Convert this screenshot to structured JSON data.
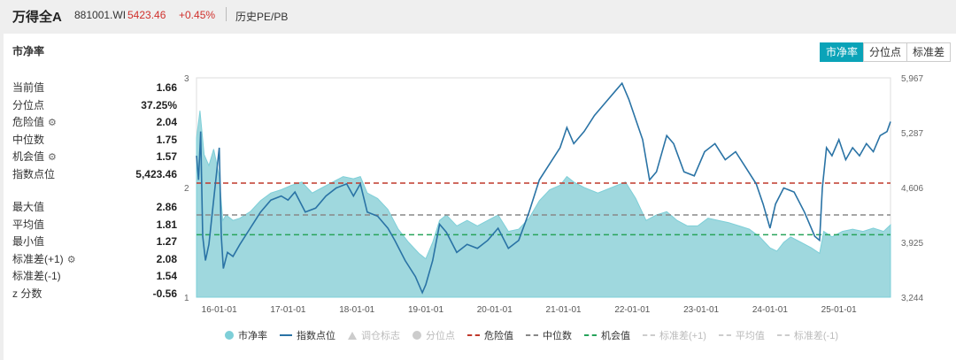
{
  "header": {
    "name": "万得全A",
    "code": "881001.WI",
    "price": "5423.46",
    "change": "+0.45%",
    "history": "历史PE/PB"
  },
  "panel": {
    "title": "市净率",
    "tabs": [
      {
        "label": "市净率",
        "active": true
      },
      {
        "label": "分位点",
        "active": false
      },
      {
        "label": "标准差",
        "active": false
      }
    ]
  },
  "stats": {
    "top": [
      {
        "label": "当前值",
        "value": "1.66",
        "gear": false
      },
      {
        "label": "分位点",
        "value": "37.25%",
        "gear": false
      },
      {
        "label": "危险值",
        "value": "2.04",
        "gear": true
      },
      {
        "label": "中位数",
        "value": "1.75",
        "gear": false
      },
      {
        "label": "机会值",
        "value": "1.57",
        "gear": true
      },
      {
        "label": "指数点位",
        "value": "5,423.46",
        "gear": false
      }
    ],
    "bottom": [
      {
        "label": "最大值",
        "value": "2.86",
        "gear": false
      },
      {
        "label": "平均值",
        "value": "1.81",
        "gear": false
      },
      {
        "label": "最小值",
        "value": "1.27",
        "gear": false
      },
      {
        "label": "标准差(+1)",
        "value": "2.08",
        "gear": true
      },
      {
        "label": "标准差(-1)",
        "value": "1.54",
        "gear": false
      },
      {
        "label": "z 分数",
        "value": "-0.56",
        "gear": false
      }
    ]
  },
  "legend": [
    {
      "label": "市净率",
      "marker": "circle",
      "color": "#7ecfd8",
      "dim": false
    },
    {
      "label": "指数点位",
      "marker": "line",
      "color": "#2a73a5",
      "dim": false
    },
    {
      "label": "调仓标志",
      "marker": "triangle",
      "color": "#cccccc",
      "dim": true
    },
    {
      "label": "分位点",
      "marker": "circle",
      "color": "#cccccc",
      "dim": true
    },
    {
      "label": "危险值",
      "marker": "dash",
      "color": "#c0392b",
      "dim": false
    },
    {
      "label": "中位数",
      "marker": "dash",
      "color": "#888888",
      "dim": false
    },
    {
      "label": "机会值",
      "marker": "dash",
      "color": "#27a35a",
      "dim": false
    },
    {
      "label": "标准差(+1)",
      "marker": "dash",
      "color": "#cccccc",
      "dim": true
    },
    {
      "label": "平均值",
      "marker": "dash",
      "color": "#cccccc",
      "dim": true
    },
    {
      "label": "标准差(-1)",
      "marker": "dash",
      "color": "#cccccc",
      "dim": true
    }
  ],
  "chart_data": {
    "type": "area",
    "title": "",
    "x_tick_labels": [
      "16-01-01",
      "17-01-01",
      "18-01-01",
      "19-01-01",
      "20-01-01",
      "21-01-01",
      "22-01-01",
      "23-01-01",
      "24-01-01",
      "25-01-01"
    ],
    "x_range": [
      2015.67,
      2025.75
    ],
    "left_axis": {
      "ylim": [
        1,
        3
      ],
      "ticks": [
        "1",
        "2",
        "3"
      ]
    },
    "right_axis": {
      "ylim": [
        3244,
        5967
      ],
      "ticks": [
        "3,244",
        "3,925",
        "4,606",
        "5,287",
        "5,967"
      ]
    },
    "reference_lines": {
      "danger": 2.04,
      "median": 1.75,
      "opportunity": 1.57
    },
    "colors": {
      "area": "#9fd8de",
      "area_line": "#7ecfd8",
      "index": "#2a73a5",
      "danger": "#c0392b",
      "median": "#888888",
      "opportunity": "#27a35a"
    },
    "series": [
      {
        "name": "市净率",
        "axis": "left",
        "points": [
          [
            2015.67,
            2.45
          ],
          [
            2015.72,
            2.7
          ],
          [
            2015.78,
            2.3
          ],
          [
            2015.85,
            2.2
          ],
          [
            2015.92,
            2.35
          ],
          [
            2016.0,
            2.1
          ],
          [
            2016.05,
            1.7
          ],
          [
            2016.1,
            1.75
          ],
          [
            2016.2,
            1.7
          ],
          [
            2016.3,
            1.72
          ],
          [
            2016.45,
            1.78
          ],
          [
            2016.6,
            1.88
          ],
          [
            2016.75,
            1.95
          ],
          [
            2016.9,
            1.98
          ],
          [
            2017.05,
            2.02
          ],
          [
            2017.2,
            2.05
          ],
          [
            2017.35,
            1.95
          ],
          [
            2017.5,
            2.0
          ],
          [
            2017.65,
            2.05
          ],
          [
            2017.8,
            2.1
          ],
          [
            2017.95,
            2.08
          ],
          [
            2018.05,
            2.1
          ],
          [
            2018.15,
            1.95
          ],
          [
            2018.3,
            1.9
          ],
          [
            2018.45,
            1.8
          ],
          [
            2018.6,
            1.62
          ],
          [
            2018.75,
            1.5
          ],
          [
            2018.9,
            1.4
          ],
          [
            2019.0,
            1.35
          ],
          [
            2019.1,
            1.5
          ],
          [
            2019.2,
            1.7
          ],
          [
            2019.3,
            1.75
          ],
          [
            2019.45,
            1.65
          ],
          [
            2019.6,
            1.7
          ],
          [
            2019.75,
            1.65
          ],
          [
            2019.9,
            1.7
          ],
          [
            2020.05,
            1.75
          ],
          [
            2020.2,
            1.6
          ],
          [
            2020.35,
            1.62
          ],
          [
            2020.5,
            1.72
          ],
          [
            2020.65,
            1.88
          ],
          [
            2020.8,
            1.98
          ],
          [
            2020.95,
            2.02
          ],
          [
            2021.05,
            2.1
          ],
          [
            2021.15,
            2.05
          ],
          [
            2021.3,
            2.0
          ],
          [
            2021.5,
            1.95
          ],
          [
            2021.7,
            2.0
          ],
          [
            2021.9,
            2.05
          ],
          [
            2022.05,
            1.9
          ],
          [
            2022.2,
            1.7
          ],
          [
            2022.35,
            1.75
          ],
          [
            2022.5,
            1.78
          ],
          [
            2022.65,
            1.7
          ],
          [
            2022.8,
            1.65
          ],
          [
            2022.95,
            1.65
          ],
          [
            2023.1,
            1.72
          ],
          [
            2023.25,
            1.7
          ],
          [
            2023.4,
            1.68
          ],
          [
            2023.55,
            1.65
          ],
          [
            2023.7,
            1.62
          ],
          [
            2023.85,
            1.55
          ],
          [
            2024.0,
            1.45
          ],
          [
            2024.1,
            1.42
          ],
          [
            2024.2,
            1.5
          ],
          [
            2024.3,
            1.55
          ],
          [
            2024.45,
            1.5
          ],
          [
            2024.6,
            1.45
          ],
          [
            2024.72,
            1.4
          ],
          [
            2024.78,
            1.6
          ],
          [
            2024.9,
            1.55
          ],
          [
            2025.05,
            1.6
          ],
          [
            2025.2,
            1.62
          ],
          [
            2025.35,
            1.6
          ],
          [
            2025.5,
            1.63
          ],
          [
            2025.65,
            1.6
          ],
          [
            2025.75,
            1.66
          ]
        ]
      },
      {
        "name": "指数点位",
        "axis": "right",
        "points": [
          [
            2015.67,
            5000
          ],
          [
            2015.7,
            4700
          ],
          [
            2015.73,
            5300
          ],
          [
            2015.76,
            4000
          ],
          [
            2015.8,
            3700
          ],
          [
            2015.85,
            3900
          ],
          [
            2015.9,
            4300
          ],
          [
            2015.95,
            4700
          ],
          [
            2016.0,
            5100
          ],
          [
            2016.03,
            4000
          ],
          [
            2016.06,
            3600
          ],
          [
            2016.12,
            3800
          ],
          [
            2016.2,
            3750
          ],
          [
            2016.3,
            3900
          ],
          [
            2016.45,
            4100
          ],
          [
            2016.6,
            4300
          ],
          [
            2016.75,
            4450
          ],
          [
            2016.9,
            4500
          ],
          [
            2017.0,
            4450
          ],
          [
            2017.1,
            4550
          ],
          [
            2017.25,
            4300
          ],
          [
            2017.4,
            4350
          ],
          [
            2017.55,
            4500
          ],
          [
            2017.7,
            4600
          ],
          [
            2017.85,
            4650
          ],
          [
            2017.95,
            4500
          ],
          [
            2018.05,
            4650
          ],
          [
            2018.15,
            4300
          ],
          [
            2018.3,
            4250
          ],
          [
            2018.45,
            4100
          ],
          [
            2018.55,
            3950
          ],
          [
            2018.7,
            3700
          ],
          [
            2018.85,
            3500
          ],
          [
            2018.95,
            3300
          ],
          [
            2019.0,
            3400
          ],
          [
            2019.1,
            3700
          ],
          [
            2019.2,
            4150
          ],
          [
            2019.3,
            4050
          ],
          [
            2019.45,
            3800
          ],
          [
            2019.6,
            3900
          ],
          [
            2019.75,
            3850
          ],
          [
            2019.9,
            3950
          ],
          [
            2020.05,
            4100
          ],
          [
            2020.2,
            3850
          ],
          [
            2020.35,
            3950
          ],
          [
            2020.5,
            4300
          ],
          [
            2020.65,
            4700
          ],
          [
            2020.8,
            4900
          ],
          [
            2020.95,
            5100
          ],
          [
            2021.05,
            5350
          ],
          [
            2021.15,
            5150
          ],
          [
            2021.3,
            5300
          ],
          [
            2021.45,
            5500
          ],
          [
            2021.6,
            5650
          ],
          [
            2021.75,
            5800
          ],
          [
            2021.85,
            5900
          ],
          [
            2021.95,
            5700
          ],
          [
            2022.05,
            5450
          ],
          [
            2022.15,
            5200
          ],
          [
            2022.25,
            4700
          ],
          [
            2022.35,
            4800
          ],
          [
            2022.5,
            5250
          ],
          [
            2022.6,
            5150
          ],
          [
            2022.75,
            4800
          ],
          [
            2022.9,
            4750
          ],
          [
            2023.05,
            5050
          ],
          [
            2023.2,
            5150
          ],
          [
            2023.35,
            4950
          ],
          [
            2023.5,
            5050
          ],
          [
            2023.65,
            4850
          ],
          [
            2023.8,
            4650
          ],
          [
            2023.9,
            4400
          ],
          [
            2024.0,
            4100
          ],
          [
            2024.08,
            4400
          ],
          [
            2024.2,
            4600
          ],
          [
            2024.35,
            4550
          ],
          [
            2024.5,
            4300
          ],
          [
            2024.65,
            4000
          ],
          [
            2024.72,
            3950
          ],
          [
            2024.76,
            4600
          ],
          [
            2024.82,
            5100
          ],
          [
            2024.9,
            5000
          ],
          [
            2025.0,
            5200
          ],
          [
            2025.1,
            4950
          ],
          [
            2025.2,
            5100
          ],
          [
            2025.3,
            5000
          ],
          [
            2025.4,
            5150
          ],
          [
            2025.5,
            5050
          ],
          [
            2025.6,
            5250
          ],
          [
            2025.7,
            5300
          ],
          [
            2025.75,
            5423
          ]
        ]
      }
    ]
  }
}
